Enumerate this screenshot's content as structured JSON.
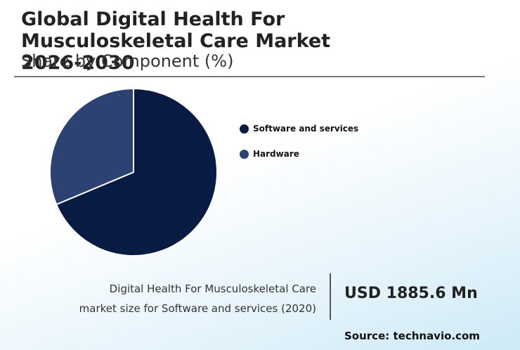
{
  "header": {
    "title": "Global Digital Health For Musculoskeletal Care Market 2026-2030",
    "subtitle": "Share by Component (%)"
  },
  "chart_data": {
    "type": "pie",
    "categories": [
      "Software and services",
      "Hardware"
    ],
    "values": [
      68.7,
      31.3
    ],
    "unit": "%",
    "colors": [
      "#081b42",
      "#2c4272"
    ],
    "start_angle": "12 o'clock",
    "direction": "clockwise",
    "legend_position": "right"
  },
  "legend": {
    "items": [
      {
        "label": "Software and services",
        "color": "#081b42"
      },
      {
        "label": "Hardware",
        "color": "#2c4272"
      }
    ]
  },
  "market": {
    "line1": "Digital Health For Musculoskeletal Care",
    "line2": "market size for Software and services (2020)",
    "value": "USD 1885.6 Mn"
  },
  "source": "Source: technavio.com"
}
